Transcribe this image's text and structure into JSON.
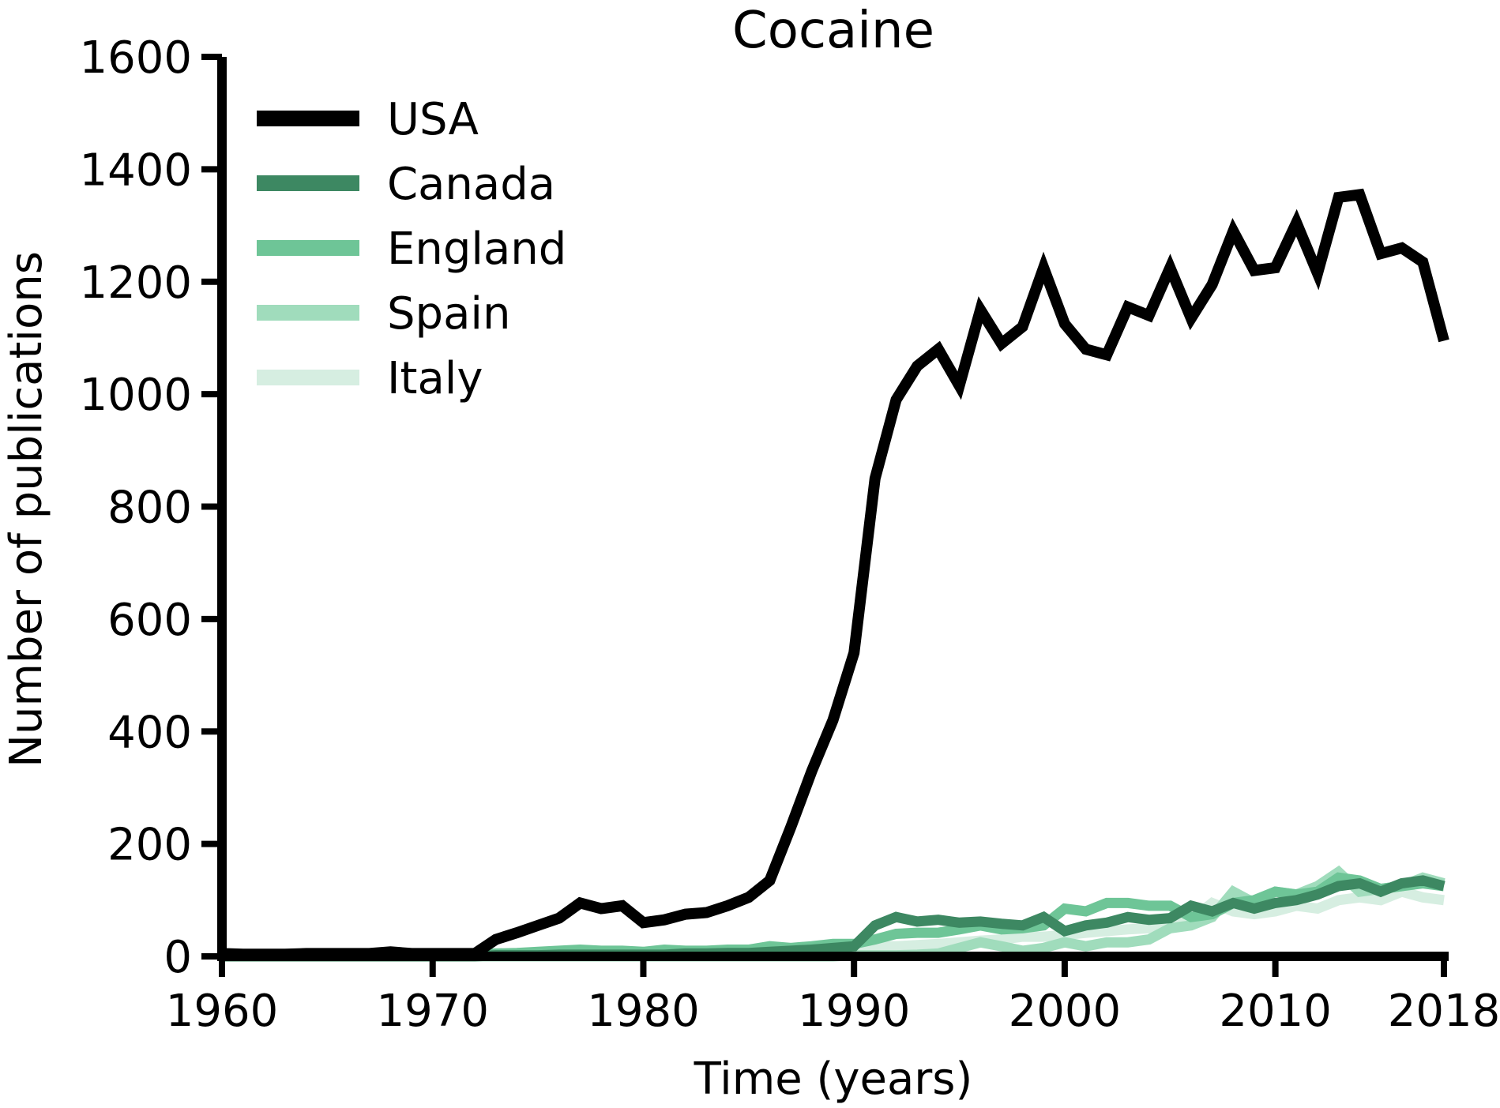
{
  "chart_data": {
    "type": "line",
    "title": "Cocaine",
    "xlabel": "Time (years)",
    "ylabel": "Number of publications",
    "xlim": [
      1960,
      2018
    ],
    "ylim": [
      0,
      1600
    ],
    "xticks": [
      "1960",
      "1970",
      "1980",
      "1990",
      "2000",
      "2010",
      "2018"
    ],
    "yticks": [
      "0",
      "200",
      "400",
      "600",
      "800",
      "1000",
      "1200",
      "1400",
      "1600"
    ],
    "grid": false,
    "legend_position": "top-left",
    "x": [
      1960,
      1961,
      1962,
      1963,
      1964,
      1965,
      1966,
      1967,
      1968,
      1969,
      1970,
      1971,
      1972,
      1973,
      1974,
      1975,
      1976,
      1977,
      1978,
      1979,
      1980,
      1981,
      1982,
      1983,
      1984,
      1985,
      1986,
      1987,
      1988,
      1989,
      1990,
      1991,
      1992,
      1993,
      1994,
      1995,
      1996,
      1997,
      1998,
      1999,
      2000,
      2001,
      2002,
      2003,
      2004,
      2005,
      2006,
      2007,
      2008,
      2009,
      2010,
      2011,
      2012,
      2013,
      2014,
      2015,
      2016,
      2017,
      2018
    ],
    "series": [
      {
        "name": "USA",
        "color": "#000000",
        "values": [
          5,
          4,
          4,
          4,
          5,
          5,
          5,
          5,
          8,
          5,
          5,
          5,
          5,
          30,
          42,
          55,
          68,
          95,
          85,
          90,
          60,
          65,
          75,
          78,
          90,
          105,
          135,
          230,
          330,
          420,
          540,
          850,
          990,
          1050,
          1080,
          1015,
          1150,
          1090,
          1120,
          1225,
          1125,
          1080,
          1070,
          1155,
          1140,
          1225,
          1135,
          1195,
          1290,
          1220,
          1225,
          1305,
          1215,
          1350,
          1355,
          1250,
          1260,
          1235,
          1095
        ]
      },
      {
        "name": "Canada",
        "color": "#3d8862",
        "values": [
          0,
          0,
          0,
          0,
          0,
          0,
          0,
          0,
          0,
          0,
          0,
          0,
          0,
          2,
          2,
          2,
          3,
          3,
          3,
          3,
          3,
          3,
          5,
          5,
          6,
          6,
          8,
          10,
          12,
          15,
          18,
          55,
          70,
          62,
          65,
          60,
          62,
          58,
          55,
          70,
          45,
          55,
          60,
          70,
          65,
          68,
          90,
          80,
          95,
          85,
          95,
          100,
          110,
          125,
          130,
          115,
          130,
          135,
          125
        ]
      },
      {
        "name": "England",
        "color": "#6ec597",
        "values": [
          3,
          3,
          3,
          3,
          3,
          3,
          3,
          3,
          3,
          3,
          4,
          4,
          4,
          5,
          6,
          8,
          10,
          12,
          10,
          10,
          8,
          12,
          10,
          10,
          12,
          12,
          18,
          15,
          18,
          22,
          22,
          30,
          40,
          42,
          42,
          48,
          55,
          48,
          50,
          55,
          85,
          80,
          95,
          95,
          90,
          90,
          70,
          75,
          95,
          100,
          115,
          110,
          115,
          140,
          135,
          120,
          125,
          130,
          125
        ]
      },
      {
        "name": "Spain",
        "color": "#a0dcbc",
        "values": [
          0,
          0,
          0,
          0,
          0,
          0,
          0,
          0,
          0,
          0,
          0,
          0,
          0,
          0,
          0,
          0,
          0,
          0,
          0,
          0,
          0,
          0,
          0,
          0,
          0,
          0,
          0,
          0,
          0,
          0,
          2,
          2,
          2,
          3,
          5,
          15,
          25,
          18,
          10,
          15,
          25,
          18,
          25,
          25,
          30,
          50,
          55,
          70,
          115,
          95,
          115,
          110,
          125,
          150,
          115,
          120,
          125,
          140,
          130
        ]
      },
      {
        "name": "Italy",
        "color": "#d6eee1",
        "values": [
          2,
          2,
          2,
          2,
          2,
          2,
          2,
          2,
          2,
          2,
          2,
          2,
          2,
          2,
          2,
          2,
          2,
          2,
          2,
          2,
          2,
          3,
          3,
          3,
          3,
          5,
          5,
          8,
          10,
          12,
          15,
          18,
          18,
          20,
          22,
          25,
          28,
          30,
          35,
          35,
          38,
          42,
          45,
          48,
          50,
          55,
          65,
          95,
          80,
          75,
          80,
          90,
          85,
          100,
          105,
          100,
          115,
          105,
          100
        ]
      }
    ]
  }
}
